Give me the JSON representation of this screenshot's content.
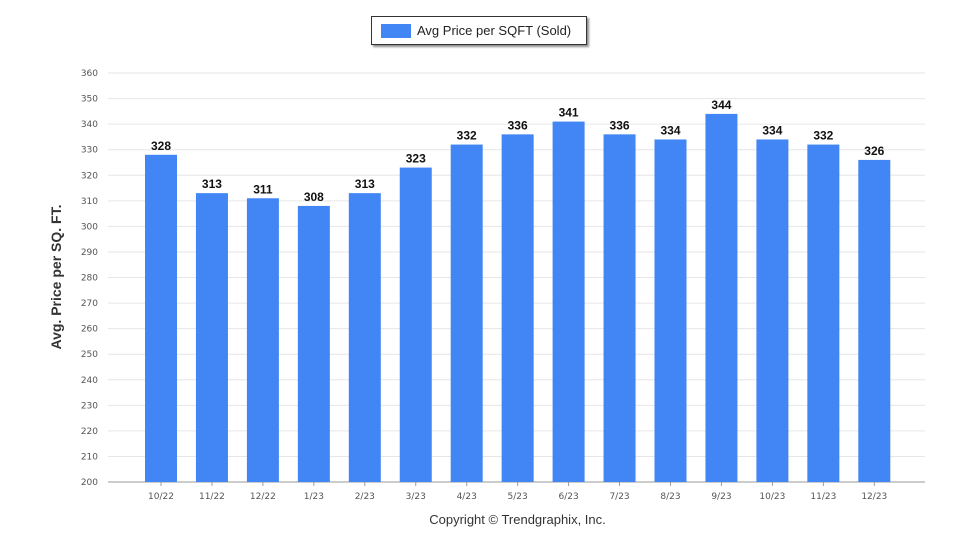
{
  "legend": {
    "label": "Avg Price per SQFT (Sold)"
  },
  "ylabel": "Avg. Price per SQ. FT.",
  "copyright": "Copyright © Trendgraphix, Inc.",
  "colors": {
    "bar": "#4285f4",
    "grid": "#e6e6e6",
    "axis": "#999999"
  },
  "chart_data": {
    "type": "bar",
    "title": "",
    "xlabel": "",
    "ylabel": "Avg. Price per SQ. FT.",
    "categories": [
      "10/22",
      "11/22",
      "12/22",
      "1/23",
      "2/23",
      "3/23",
      "4/23",
      "5/23",
      "6/23",
      "7/23",
      "8/23",
      "9/23",
      "10/23",
      "11/23",
      "12/23"
    ],
    "series": [
      {
        "name": "Avg Price per SQFT (Sold)",
        "values": [
          328,
          313,
          311,
          308,
          313,
          323,
          332,
          336,
          341,
          336,
          334,
          344,
          334,
          332,
          326
        ]
      }
    ],
    "ylim": [
      200,
      360
    ],
    "yticks": [
      200,
      210,
      220,
      230,
      240,
      250,
      260,
      270,
      280,
      290,
      300,
      310,
      320,
      330,
      340,
      350,
      360
    ],
    "grid": true,
    "legend_position": "top-center",
    "data_labels": true
  }
}
